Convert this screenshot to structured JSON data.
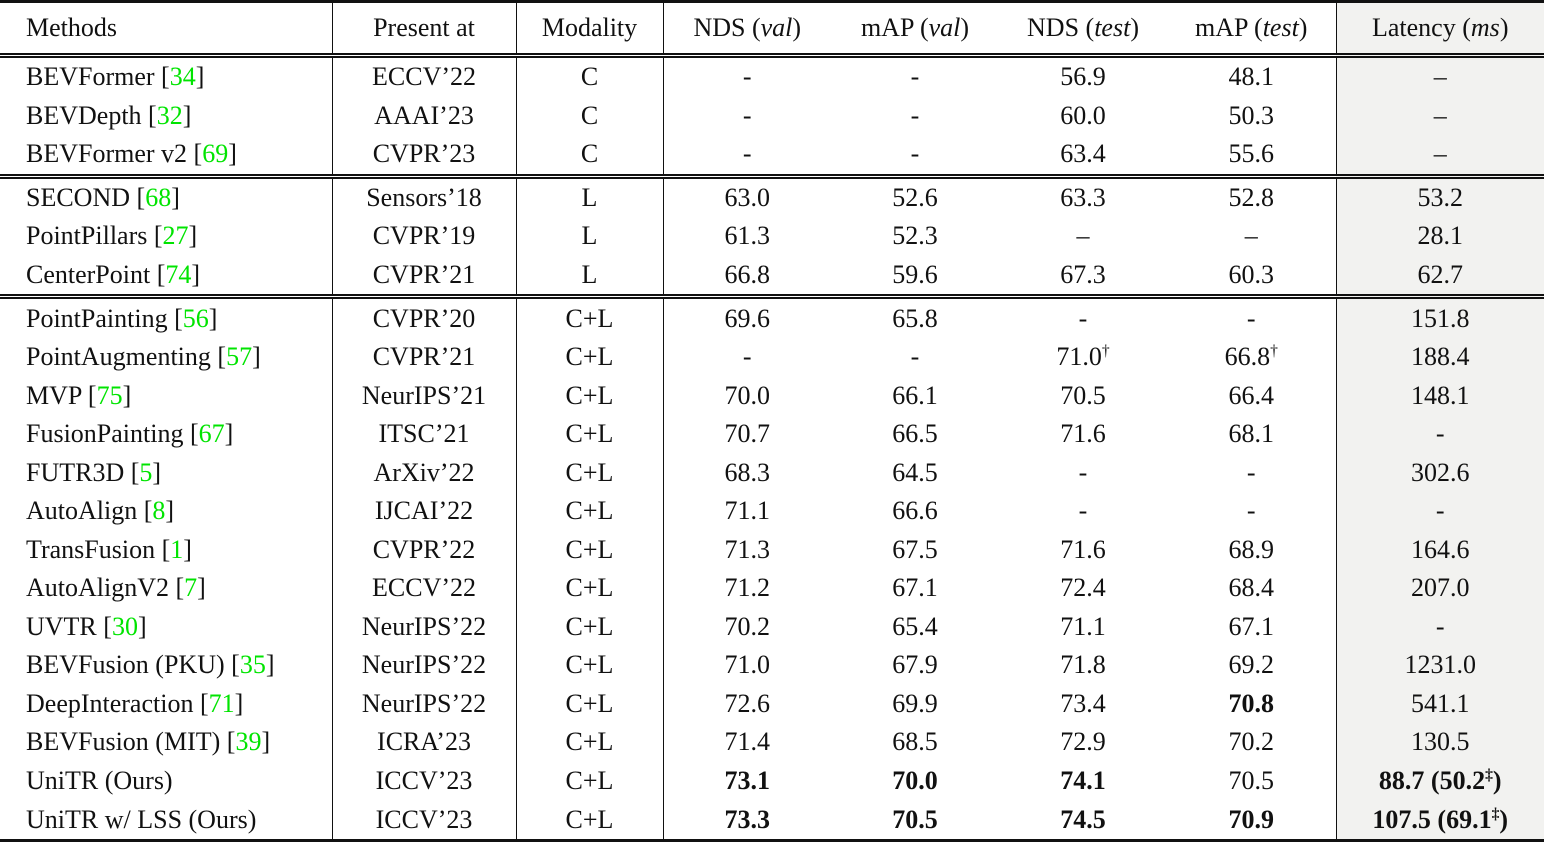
{
  "colors": {
    "citation_green": "#00e400",
    "latency_bg": "#f2f2f0"
  },
  "header": {
    "cells": [
      {
        "text": "Methods",
        "paren": ""
      },
      {
        "text": "Present at",
        "paren": ""
      },
      {
        "text": "Modality",
        "paren": ""
      },
      {
        "text": "NDS",
        "paren": "val"
      },
      {
        "text": "mAP",
        "paren": "val"
      },
      {
        "text": "NDS",
        "paren": "test"
      },
      {
        "text": "mAP",
        "paren": "test"
      },
      {
        "text": "Latency",
        "paren": "ms"
      }
    ]
  },
  "groups": [
    {
      "rows": [
        {
          "method": "BEVFormer",
          "cite": "34",
          "venue": "ECCV’22",
          "modality": "C",
          "vals": [
            {
              "t": "-"
            },
            {
              "t": "-"
            },
            {
              "t": "56.9"
            },
            {
              "t": "48.1"
            }
          ],
          "latency": {
            "t": "–"
          }
        },
        {
          "method": "BEVDepth",
          "cite": "32",
          "venue": "AAAI’23",
          "modality": "C",
          "vals": [
            {
              "t": "-"
            },
            {
              "t": "-"
            },
            {
              "t": "60.0"
            },
            {
              "t": "50.3"
            }
          ],
          "latency": {
            "t": "–"
          }
        },
        {
          "method": "BEVFormer v2",
          "cite": "69",
          "venue": "CVPR’23",
          "modality": "C",
          "vals": [
            {
              "t": "-"
            },
            {
              "t": "-"
            },
            {
              "t": "63.4"
            },
            {
              "t": "55.6"
            }
          ],
          "latency": {
            "t": "–"
          }
        }
      ]
    },
    {
      "rows": [
        {
          "method": "SECOND",
          "cite": "68",
          "venue": "Sensors’18",
          "modality": "L",
          "vals": [
            {
              "t": "63.0"
            },
            {
              "t": "52.6"
            },
            {
              "t": "63.3"
            },
            {
              "t": "52.8"
            }
          ],
          "latency": {
            "t": "53.2"
          }
        },
        {
          "method": "PointPillars",
          "cite": "27",
          "venue": "CVPR’19",
          "modality": "L",
          "vals": [
            {
              "t": "61.3"
            },
            {
              "t": "52.3"
            },
            {
              "t": "–"
            },
            {
              "t": "–"
            }
          ],
          "latency": {
            "t": "28.1"
          }
        },
        {
          "method": "CenterPoint",
          "cite": "74",
          "venue": "CVPR’21",
          "modality": "L",
          "vals": [
            {
              "t": "66.8"
            },
            {
              "t": "59.6"
            },
            {
              "t": "67.3"
            },
            {
              "t": "60.3"
            }
          ],
          "latency": {
            "t": "62.7"
          }
        }
      ]
    },
    {
      "rows": [
        {
          "method": "PointPainting",
          "cite": "56",
          "venue": "CVPR’20",
          "modality": "C+L",
          "vals": [
            {
              "t": "69.6"
            },
            {
              "t": "65.8"
            },
            {
              "t": "-"
            },
            {
              "t": "-"
            }
          ],
          "latency": {
            "t": "151.8"
          }
        },
        {
          "method": "PointAugmenting",
          "cite": "57",
          "venue": "CVPR’21",
          "modality": "C+L",
          "vals": [
            {
              "t": "-"
            },
            {
              "t": "-"
            },
            {
              "t": "71.0",
              "s": "†"
            },
            {
              "t": "66.8",
              "s": "†"
            }
          ],
          "latency": {
            "t": "188.4"
          }
        },
        {
          "method": "MVP",
          "cite": "75",
          "venue": "NeurIPS’21",
          "modality": "C+L",
          "vals": [
            {
              "t": "70.0"
            },
            {
              "t": "66.1"
            },
            {
              "t": "70.5"
            },
            {
              "t": "66.4"
            }
          ],
          "latency": {
            "t": "148.1"
          }
        },
        {
          "method": "FusionPainting",
          "cite": "67",
          "venue": "ITSC’21",
          "modality": "C+L",
          "vals": [
            {
              "t": "70.7"
            },
            {
              "t": "66.5"
            },
            {
              "t": "71.6"
            },
            {
              "t": "68.1"
            }
          ],
          "latency": {
            "t": "-"
          }
        },
        {
          "method": "FUTR3D",
          "cite": "5",
          "venue": "ArXiv’22",
          "modality": "C+L",
          "vals": [
            {
              "t": "68.3"
            },
            {
              "t": "64.5"
            },
            {
              "t": "-"
            },
            {
              "t": "-"
            }
          ],
          "latency": {
            "t": "302.6"
          }
        },
        {
          "method": "AutoAlign",
          "cite": "8",
          "venue": "IJCAI’22",
          "modality": "C+L",
          "vals": [
            {
              "t": "71.1"
            },
            {
              "t": "66.6"
            },
            {
              "t": "-"
            },
            {
              "t": "-"
            }
          ],
          "latency": {
            "t": "-"
          }
        },
        {
          "method": "TransFusion",
          "cite": "1",
          "venue": "CVPR’22",
          "modality": "C+L",
          "vals": [
            {
              "t": "71.3"
            },
            {
              "t": "67.5"
            },
            {
              "t": "71.6"
            },
            {
              "t": "68.9"
            }
          ],
          "latency": {
            "t": "164.6"
          }
        },
        {
          "method": "AutoAlignV2",
          "cite": "7",
          "venue": "ECCV’22",
          "modality": "C+L",
          "vals": [
            {
              "t": "71.2"
            },
            {
              "t": "67.1"
            },
            {
              "t": "72.4"
            },
            {
              "t": "68.4"
            }
          ],
          "latency": {
            "t": "207.0"
          }
        },
        {
          "method": "UVTR",
          "cite": "30",
          "venue": "NeurIPS’22",
          "modality": "C+L",
          "vals": [
            {
              "t": "70.2"
            },
            {
              "t": "65.4"
            },
            {
              "t": "71.1"
            },
            {
              "t": "67.1"
            }
          ],
          "latency": {
            "t": "-"
          }
        },
        {
          "method": "BEVFusion (PKU)",
          "cite": "35",
          "venue": "NeurIPS’22",
          "modality": "C+L",
          "vals": [
            {
              "t": "71.0"
            },
            {
              "t": "67.9"
            },
            {
              "t": "71.8"
            },
            {
              "t": "69.2"
            }
          ],
          "latency": {
            "t": "1231.0"
          }
        },
        {
          "method": "DeepInteraction",
          "cite": "71",
          "venue": "NeurIPS’22",
          "modality": "C+L",
          "vals": [
            {
              "t": "72.6"
            },
            {
              "t": "69.9"
            },
            {
              "t": "73.4"
            },
            {
              "t": "70.8",
              "b": true
            }
          ],
          "latency": {
            "t": "541.1"
          }
        },
        {
          "method": "BEVFusion (MIT)",
          "cite": "39",
          "venue": "ICRA’23",
          "modality": "C+L",
          "vals": [
            {
              "t": "71.4"
            },
            {
              "t": "68.5"
            },
            {
              "t": "72.9"
            },
            {
              "t": "70.2"
            }
          ],
          "latency": {
            "t": "130.5"
          }
        },
        {
          "method": "UniTR (Ours)",
          "cite": null,
          "venue": "ICCV’23",
          "modality": "C+L",
          "vals": [
            {
              "t": "73.1",
              "b": true
            },
            {
              "t": "70.0",
              "b": true
            },
            {
              "t": "74.1",
              "b": true
            },
            {
              "t": "70.5"
            }
          ],
          "latency": {
            "t": "88.7 (50.2",
            "s": "‡",
            "a": ")",
            "b": true
          }
        },
        {
          "method": "UniTR w/ LSS (Ours)",
          "cite": null,
          "venue": "ICCV’23",
          "modality": "C+L",
          "vals": [
            {
              "t": "73.3",
              "b": true
            },
            {
              "t": "70.5",
              "b": true
            },
            {
              "t": "74.5",
              "b": true
            },
            {
              "t": "70.9",
              "b": true
            }
          ],
          "latency": {
            "t": "107.5 (69.1",
            "s": "‡",
            "a": ")",
            "b": true
          }
        }
      ]
    }
  ]
}
